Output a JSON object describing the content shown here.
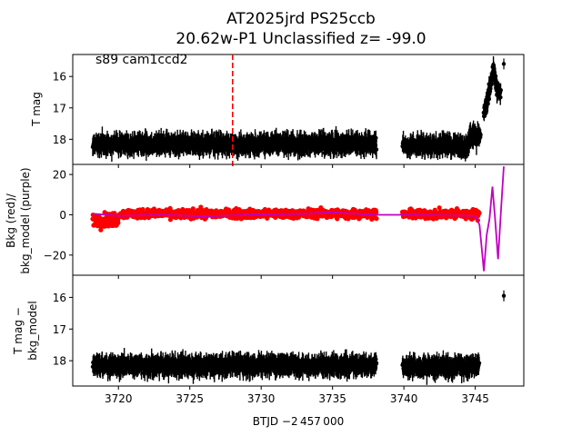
{
  "figure": {
    "title_line1": "AT2025jrd  PS25ccb",
    "title_line2": "20.62w-P1 Unclassified z= -99.0",
    "xlabel": "BTJD −2 457 000",
    "annotation": "s89 cam1ccd2",
    "event_marker_x": 3728.0
  },
  "colors": {
    "data": "#000000",
    "background": "#ff0000",
    "background_model": "#c000c0",
    "marker_line": "#ff0000"
  },
  "chart_data": [
    {
      "type": "scatter",
      "panel": "top",
      "ylabel": "T mag",
      "y_inverted": true,
      "xlim": [
        3716.8,
        3748.4
      ],
      "ylim": [
        18.8,
        15.3
      ],
      "x_ticks": [
        3720,
        3725,
        3730,
        3735,
        3740,
        3745
      ],
      "y_ticks": [
        16,
        17,
        18
      ],
      "y_tick_labels": [
        "16",
        "17",
        "18"
      ],
      "series": [
        {
          "color": "#000000",
          "segments": [
            {
              "x_range": [
                3718.2,
                3738.1
              ],
              "y_center": 18.15,
              "y_scatter": 0.35
            },
            {
              "x_range": [
                3739.9,
                3744.6
              ],
              "y_center": 18.2,
              "y_scatter": 0.35
            },
            {
              "x_range": [
                3744.6,
                3745.4
              ],
              "y_center": 17.9,
              "y_scatter": 0.4
            }
          ],
          "rise_points": [
            {
              "x": 3745.6,
              "y": 17.2
            },
            {
              "x": 3745.9,
              "y": 16.6
            },
            {
              "x": 3746.1,
              "y": 16.2
            },
            {
              "x": 3746.3,
              "y": 15.8
            },
            {
              "x": 3746.5,
              "y": 16.4
            },
            {
              "x": 3746.8,
              "y": 16.5
            }
          ],
          "outlier": {
            "x": 3747.0,
            "y": 15.6
          }
        }
      ]
    },
    {
      "type": "scatter",
      "panel": "middle",
      "ylabel_line1": "Bkg (red)/",
      "ylabel_line2": "bkg_model (purple)",
      "xlim": [
        3716.8,
        3748.4
      ],
      "ylim": [
        -30,
        25
      ],
      "x_ticks": [
        3720,
        3725,
        3730,
        3735,
        3740,
        3745
      ],
      "y_ticks": [
        -20,
        0,
        20
      ],
      "y_tick_labels": [
        "−20",
        "0",
        "20"
      ],
      "series": [
        {
          "color": "#ff0000",
          "segments": [
            {
              "x_range": [
                3718.2,
                3720.0
              ],
              "y_center": -2.5,
              "y_scatter": 6
            },
            {
              "x_range": [
                3720.0,
                3738.1
              ],
              "y_center": 0.5,
              "y_scatter": 4
            },
            {
              "x_range": [
                3739.9,
                3745.3
              ],
              "y_center": 0.3,
              "y_scatter": 4
            }
          ]
        },
        {
          "color": "#c000c0",
          "line": [
            [
              3718.2,
              0.5
            ],
            [
              3720,
              -0.5
            ],
            [
              3723,
              0
            ],
            [
              3726,
              -0.8
            ],
            [
              3728,
              -0.3
            ],
            [
              3730,
              0.2
            ],
            [
              3733,
              0.5
            ],
            [
              3735,
              1.2
            ],
            [
              3738,
              0
            ],
            [
              3740,
              0
            ],
            [
              3745.0,
              -0.5
            ],
            [
              3745.3,
              -5
            ],
            [
              3745.6,
              -28
            ],
            [
              3745.8,
              -10
            ],
            [
              3746.0,
              -2
            ],
            [
              3746.2,
              14
            ],
            [
              3746.4,
              -3
            ],
            [
              3746.6,
              -22
            ],
            [
              3746.8,
              2
            ],
            [
              3747.0,
              24
            ]
          ]
        }
      ]
    },
    {
      "type": "scatter",
      "panel": "bottom",
      "ylabel_line1": "T mag −",
      "ylabel_line2": "bkg_model",
      "y_inverted": true,
      "xlim": [
        3716.8,
        3748.4
      ],
      "ylim": [
        18.8,
        15.3
      ],
      "x_ticks": [
        3720,
        3725,
        3730,
        3735,
        3740,
        3745
      ],
      "x_tick_labels": [
        "3720",
        "3725",
        "3730",
        "3735",
        "3740",
        "3745"
      ],
      "y_ticks": [
        16,
        17,
        18
      ],
      "y_tick_labels": [
        "16",
        "17",
        "18"
      ],
      "series": [
        {
          "color": "#000000",
          "segments": [
            {
              "x_range": [
                3718.2,
                3738.1
              ],
              "y_center": 18.15,
              "y_scatter": 0.35
            },
            {
              "x_range": [
                3739.9,
                3745.3
              ],
              "y_center": 18.2,
              "y_scatter": 0.35
            }
          ],
          "outlier": {
            "x": 3747.0,
            "y": 15.95
          }
        }
      ]
    }
  ]
}
